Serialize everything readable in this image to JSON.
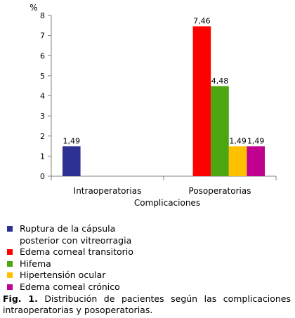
{
  "chart_data": {
    "type": "bar",
    "categories": [
      "Intraoperatorias",
      "Posoperatorias"
    ],
    "xlabel": "Complicaciones",
    "ylabel": "%",
    "ylim": [
      0,
      8
    ],
    "yticks": [
      0,
      1,
      2,
      3,
      4,
      5,
      6,
      7,
      8
    ],
    "grid": false,
    "legend_position": "bottom",
    "series": [
      {
        "name": "Ruptura de la cápsula posterior con vitreorragia",
        "color": "#2E3192",
        "values": [
          1.49,
          null
        ],
        "labels": [
          "1,49",
          ""
        ]
      },
      {
        "name": "Edema corneal transitorio",
        "color": "#FF0000",
        "values": [
          null,
          7.46
        ],
        "labels": [
          "",
          "7,46"
        ]
      },
      {
        "name": "Hifema",
        "color": "#4DA50F",
        "values": [
          null,
          4.48
        ],
        "labels": [
          "",
          "4,48"
        ]
      },
      {
        "name": "Hipertensión ocular",
        "color": "#FFC000",
        "values": [
          null,
          1.49
        ],
        "labels": [
          "",
          "1,49"
        ]
      },
      {
        "name": "Edema corneal crónico",
        "color": "#C0008F",
        "values": [
          null,
          1.49
        ],
        "labels": [
          "",
          "1,49"
        ]
      }
    ]
  },
  "legend": {
    "items": [
      {
        "lines": [
          "Ruptura de la cápsula",
          "posterior con vitreorragia"
        ],
        "color": "#2E3192"
      },
      {
        "lines": [
          "Edema corneal transitorio"
        ],
        "color": "#FF0000"
      },
      {
        "lines": [
          "Hifema"
        ],
        "color": "#4DA50F"
      },
      {
        "lines": [
          "Hipertensión ocular"
        ],
        "color": "#FFC000"
      },
      {
        "lines": [
          "Edema corneal crónico"
        ],
        "color": "#C0008F"
      }
    ]
  },
  "caption": {
    "lead": "Fig. 1.",
    "text": " Distribución de pacientes según las complicaciones intraoperatorias y posoperatorias."
  }
}
